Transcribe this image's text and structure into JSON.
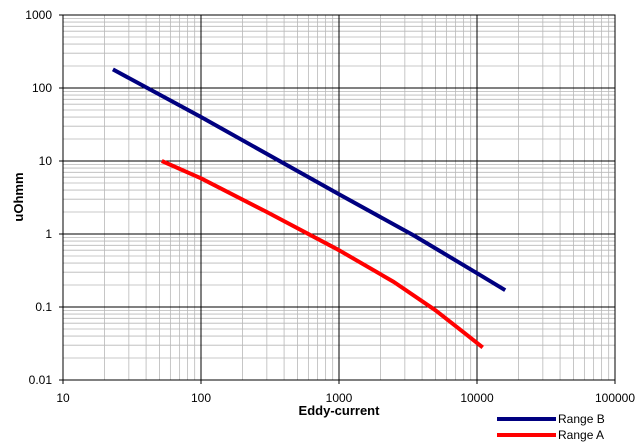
{
  "chart_data": {
    "type": "line",
    "title": "",
    "xlabel": "Eddy-current",
    "ylabel": "uOhmm",
    "x_scale": "log",
    "y_scale": "log",
    "xlim": [
      10,
      100000
    ],
    "ylim": [
      0.01,
      1000
    ],
    "x_ticks": [
      "10",
      "100",
      "1000",
      "10000",
      "100000"
    ],
    "y_ticks": [
      "0.01",
      "0.1",
      "1",
      "10",
      "100",
      "1000"
    ],
    "grid": true,
    "legend_position": "bottom-right",
    "series": [
      {
        "name": "Range B",
        "color": "#000080",
        "x": [
          23,
          100,
          1000,
          3500,
          10000,
          16000
        ],
        "y": [
          180,
          40,
          3.5,
          0.95,
          0.29,
          0.17
        ]
      },
      {
        "name": "Range A",
        "color": "#ff0000",
        "x": [
          52,
          100,
          300,
          1000,
          2500,
          5000,
          8000,
          11000
        ],
        "y": [
          10,
          5.8,
          2.0,
          0.6,
          0.22,
          0.09,
          0.045,
          0.028
        ]
      }
    ]
  }
}
